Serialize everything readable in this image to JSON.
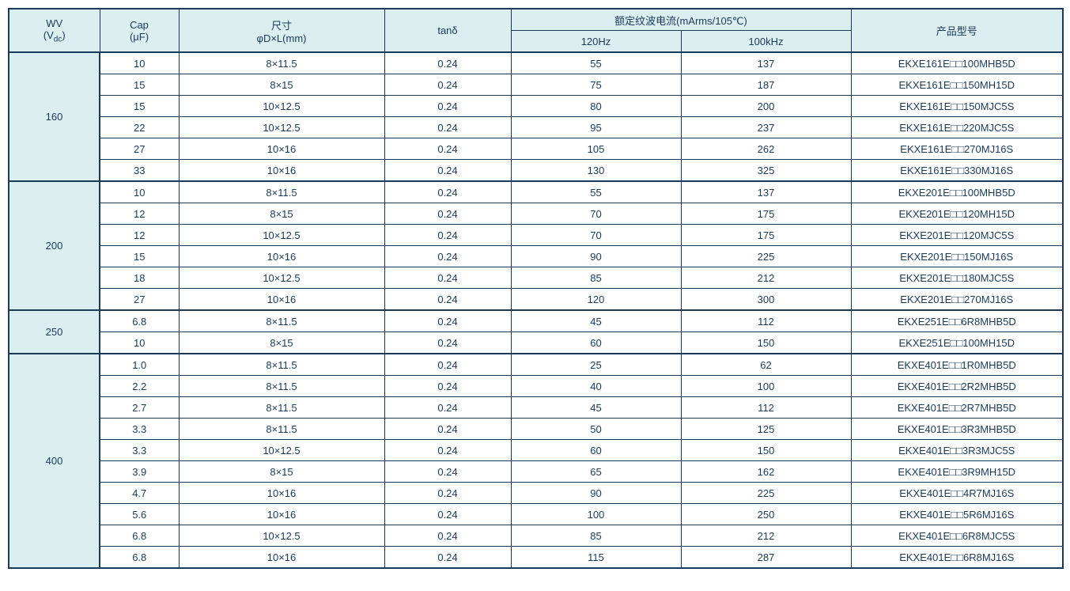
{
  "headers": {
    "wv_line1": "WV",
    "wv_line2": "(Vdc)",
    "cap_line1": "Cap",
    "cap_line2": "(μF)",
    "size_line1": "尺寸",
    "size_line2": "φD×L(mm)",
    "tan": "tanδ",
    "ripple_title": "额定纹波电流(mArms/105℃)",
    "ripple_120": "120Hz",
    "ripple_100k": "100kHz",
    "part": "产品型号"
  },
  "colors": {
    "header_bg": "#dbeef0",
    "border": "#1a3a5a",
    "text": "#1a3a5a",
    "page_bg": "#ffffff"
  },
  "groups": [
    {
      "wv": "160",
      "rows": [
        {
          "cap": "10",
          "size": "8×11.5",
          "tan": "0.24",
          "r120": "55",
          "r100k": "137",
          "part": "EKXE161E□□100MHB5D"
        },
        {
          "cap": "15",
          "size": "8×15",
          "tan": "0.24",
          "r120": "75",
          "r100k": "187",
          "part": "EKXE161E□□150MH15D"
        },
        {
          "cap": "15",
          "size": "10×12.5",
          "tan": "0.24",
          "r120": "80",
          "r100k": "200",
          "part": "EKXE161E□□150MJC5S"
        },
        {
          "cap": "22",
          "size": "10×12.5",
          "tan": "0.24",
          "r120": "95",
          "r100k": "237",
          "part": "EKXE161E□□220MJC5S"
        },
        {
          "cap": "27",
          "size": "10×16",
          "tan": "0.24",
          "r120": "105",
          "r100k": "262",
          "part": "EKXE161E□□270MJ16S"
        },
        {
          "cap": "33",
          "size": "10×16",
          "tan": "0.24",
          "r120": "130",
          "r100k": "325",
          "part": "EKXE161E□□330MJ16S"
        }
      ]
    },
    {
      "wv": "200",
      "rows": [
        {
          "cap": "10",
          "size": "8×11.5",
          "tan": "0.24",
          "r120": "55",
          "r100k": "137",
          "part": "EKXE201E□□100MHB5D"
        },
        {
          "cap": "12",
          "size": "8×15",
          "tan": "0.24",
          "r120": "70",
          "r100k": "175",
          "part": "EKXE201E□□120MH15D"
        },
        {
          "cap": "12",
          "size": "10×12.5",
          "tan": "0.24",
          "r120": "70",
          "r100k": "175",
          "part": "EKXE201E□□120MJC5S"
        },
        {
          "cap": "15",
          "size": "10×16",
          "tan": "0.24",
          "r120": "90",
          "r100k": "225",
          "part": "EKXE201E□□150MJ16S"
        },
        {
          "cap": "18",
          "size": "10×12.5",
          "tan": "0.24",
          "r120": "85",
          "r100k": "212",
          "part": "EKXE201E□□180MJC5S"
        },
        {
          "cap": "27",
          "size": "10×16",
          "tan": "0.24",
          "r120": "120",
          "r100k": "300",
          "part": "EKXE201E□□270MJ16S"
        }
      ]
    },
    {
      "wv": "250",
      "rows": [
        {
          "cap": "6.8",
          "size": "8×11.5",
          "tan": "0.24",
          "r120": "45",
          "r100k": "112",
          "part": "EKXE251E□□6R8MHB5D"
        },
        {
          "cap": "10",
          "size": "8×15",
          "tan": "0.24",
          "r120": "60",
          "r100k": "150",
          "part": "EKXE251E□□100MH15D"
        }
      ]
    },
    {
      "wv": "400",
      "rows": [
        {
          "cap": "1.0",
          "size": "8×11.5",
          "tan": "0.24",
          "r120": "25",
          "r100k": "62",
          "part": "EKXE401E□□1R0MHB5D"
        },
        {
          "cap": "2.2",
          "size": "8×11.5",
          "tan": "0.24",
          "r120": "40",
          "r100k": "100",
          "part": "EKXE401E□□2R2MHB5D"
        },
        {
          "cap": "2.7",
          "size": "8×11.5",
          "tan": "0.24",
          "r120": "45",
          "r100k": "112",
          "part": "EKXE401E□□2R7MHB5D"
        },
        {
          "cap": "3.3",
          "size": "8×11.5",
          "tan": "0.24",
          "r120": "50",
          "r100k": "125",
          "part": "EKXE401E□□3R3MHB5D"
        },
        {
          "cap": "3.3",
          "size": "10×12.5",
          "tan": "0.24",
          "r120": "60",
          "r100k": "150",
          "part": "EKXE401E□□3R3MJC5S"
        },
        {
          "cap": "3.9",
          "size": "8×15",
          "tan": "0.24",
          "r120": "65",
          "r100k": "162",
          "part": "EKXE401E□□3R9MH15D"
        },
        {
          "cap": "4.7",
          "size": "10×16",
          "tan": "0.24",
          "r120": "90",
          "r100k": "225",
          "part": "EKXE401E□□4R7MJ16S"
        },
        {
          "cap": "5.6",
          "size": "10×16",
          "tan": "0.24",
          "r120": "100",
          "r100k": "250",
          "part": "EKXE401E□□5R6MJ16S"
        },
        {
          "cap": "6.8",
          "size": "10×12.5",
          "tan": "0.24",
          "r120": "85",
          "r100k": "212",
          "part": "EKXE401E□□6R8MJC5S"
        },
        {
          "cap": "6.8",
          "size": "10×16",
          "tan": "0.24",
          "r120": "115",
          "r100k": "287",
          "part": "EKXE401E□□6R8MJ16S"
        }
      ]
    }
  ]
}
